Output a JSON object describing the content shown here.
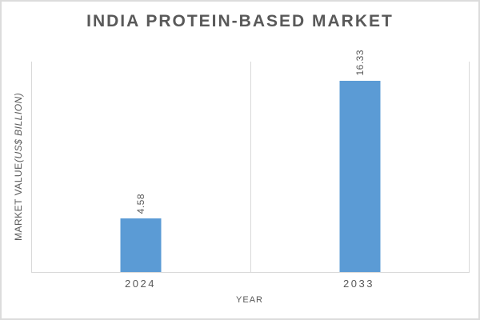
{
  "window": {
    "background": "#ffffff",
    "border_color": "#dcdcdc"
  },
  "chart_data": {
    "type": "bar",
    "title": "INDIA PROTEIN-BASED MARKET",
    "categories": [
      "2024",
      "2033"
    ],
    "values": [
      4.58,
      16.33
    ],
    "data_labels": [
      "4.58",
      "16.33"
    ],
    "xlabel": "YEAR",
    "ylabel": "MARKET VALUE (US$ BILLION)",
    "ylabel_regular": "MARKET VALUE ",
    "ylabel_italic": "(US$ BILLION)",
    "ylim": [
      0,
      18
    ],
    "grid": "vertical-category-boundaries-only",
    "legend_position": "none",
    "data_label_orientation": "rotated-90-bottom-to-top",
    "bar_color": "#5b9bd5",
    "text_color": "#595959",
    "axis_line_color": "#d9d9d9"
  }
}
